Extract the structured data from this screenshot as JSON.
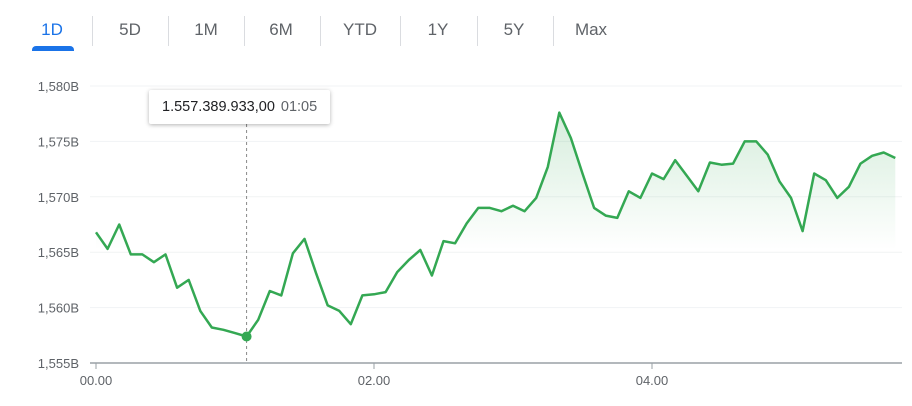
{
  "tabs": [
    {
      "label": "1D",
      "active": true
    },
    {
      "label": "5D",
      "active": false
    },
    {
      "label": "1M",
      "active": false
    },
    {
      "label": "6M",
      "active": false
    },
    {
      "label": "YTD",
      "active": false
    },
    {
      "label": "1Y",
      "active": false
    },
    {
      "label": "5Y",
      "active": false
    },
    {
      "label": "Max",
      "active": false
    }
  ],
  "tooltip": {
    "value": "1.557.389.933,00",
    "time": "01:05"
  },
  "colors": {
    "accent": "#1a73e8",
    "line": "#34a853",
    "grid": "#f1f3f4",
    "axis": "#5f6368"
  },
  "chart_data": {
    "type": "line",
    "title": "",
    "xlabel": "",
    "ylabel": "",
    "x_unit": "minutes since 00.00",
    "x_interval_minutes": 5,
    "xlim": [
      0,
      348
    ],
    "ylim": [
      1555,
      1580
    ],
    "grid": true,
    "y_ticks": [
      {
        "value": 1580,
        "label": "1,580B"
      },
      {
        "value": 1575,
        "label": "1,575B"
      },
      {
        "value": 1570,
        "label": "1,570B"
      },
      {
        "value": 1565,
        "label": "1,565B"
      },
      {
        "value": 1560,
        "label": "1,560B"
      },
      {
        "value": 1555,
        "label": "1,555B"
      }
    ],
    "x_ticks": [
      {
        "value": 0,
        "label": "00.00"
      },
      {
        "value": 120,
        "label": "02.00"
      },
      {
        "value": 240,
        "label": "04.00"
      }
    ],
    "highlight": {
      "x": 65,
      "y": 1557.39
    },
    "values": [
      1566.8,
      1565.3,
      1567.5,
      1564.8,
      1564.8,
      1564.1,
      1564.8,
      1561.8,
      1562.5,
      1559.7,
      1558.2,
      1558.0,
      1557.7,
      1557.39,
      1558.9,
      1561.5,
      1561.1,
      1564.9,
      1566.2,
      1563.1,
      1560.2,
      1559.7,
      1558.5,
      1561.1,
      1561.2,
      1561.4,
      1563.2,
      1564.3,
      1565.2,
      1562.9,
      1566.0,
      1565.8,
      1567.6,
      1569.0,
      1569.0,
      1568.7,
      1569.2,
      1568.7,
      1569.9,
      1572.7,
      1577.6,
      1575.3,
      1572.1,
      1569.0,
      1568.3,
      1568.1,
      1570.5,
      1569.9,
      1572.1,
      1571.6,
      1573.3,
      1571.9,
      1570.5,
      1573.1,
      1572.9,
      1573.0,
      1575.0,
      1575.0,
      1573.8,
      1571.4,
      1569.9,
      1566.9,
      1572.1,
      1571.5,
      1569.9,
      1570.9,
      1573.0,
      1573.7,
      1574.0,
      1573.5
    ]
  }
}
